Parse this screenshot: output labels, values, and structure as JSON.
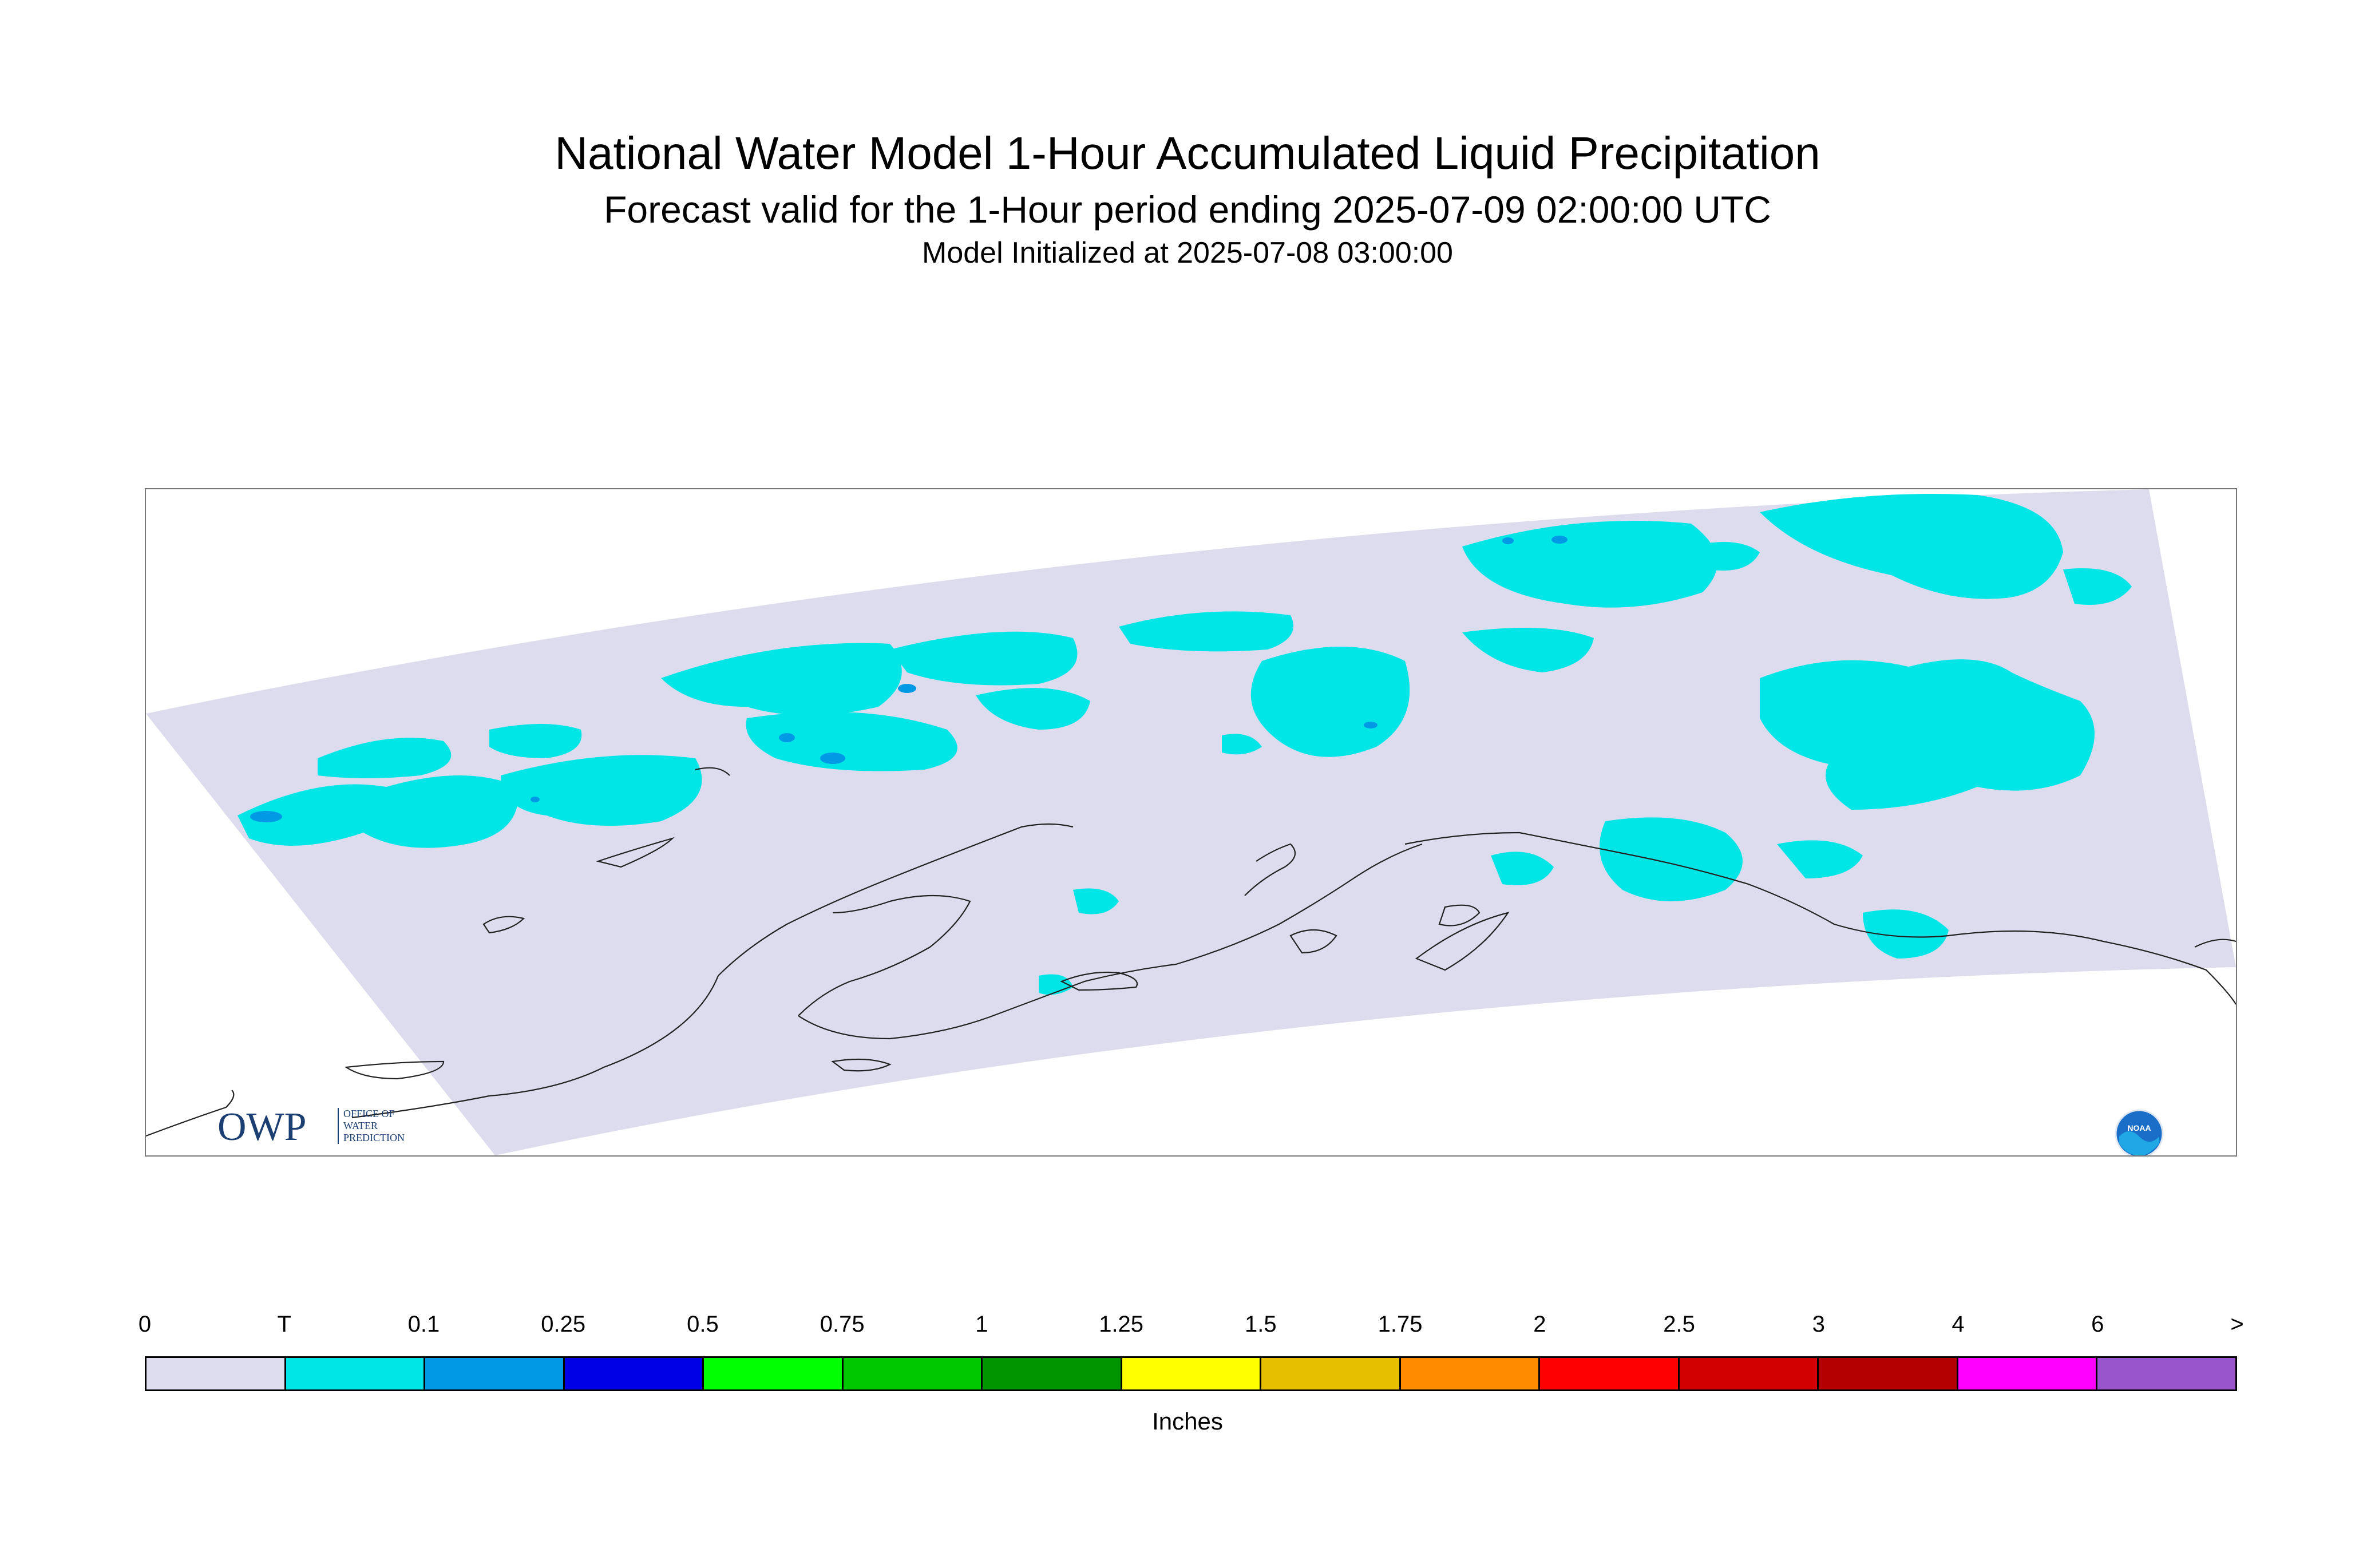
{
  "title": "National Water Model 1-Hour Accumulated Liquid Precipitation",
  "subtitle": "Forecast valid for the 1-Hour period ending 2025-07-09 02:00:00 UTC",
  "init_line": "Model Initialized at 2025-07-08 03:00:00",
  "logos": {
    "owp_text": "OWP",
    "owp_sub": [
      "OFFICE OF",
      "WATER",
      "PREDICTION"
    ],
    "noaa_text": "NOAA"
  },
  "colors": {
    "no_precip_background": "#dcdcee",
    "trace": "#00e6e6",
    "light": "#0099e6",
    "coastline": "#222222"
  },
  "legend": {
    "units": "Inches",
    "labels": [
      "0",
      "T",
      "0.1",
      "0.25",
      "0.5",
      "0.75",
      "1",
      "1.25",
      "1.5",
      "1.75",
      "2",
      "2.5",
      "3",
      "4",
      "6",
      ">"
    ],
    "colors": [
      "#dcdcee",
      "#00e6e6",
      "#0099e6",
      "#0000e6",
      "#00ff00",
      "#00c800",
      "#009600",
      "#ffff00",
      "#e6c000",
      "#ff8c00",
      "#ff0000",
      "#d20000",
      "#b40000",
      "#ff00ff",
      "#9955cc"
    ]
  }
}
